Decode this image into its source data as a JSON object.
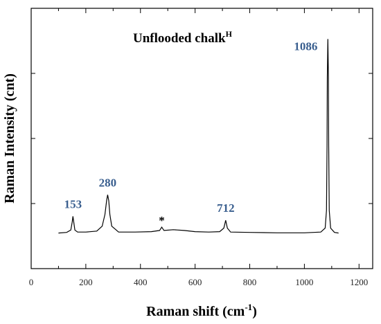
{
  "chart_data": {
    "type": "line",
    "title": "Unflooded chalk",
    "title_superscript": "H",
    "xlabel_main": "Raman shift (cm",
    "xlabel_sup": "-1",
    "xlabel_end": ")",
    "ylabel": "Raman Intensity (cnt)",
    "xlim": [
      0,
      1250
    ],
    "xticks": [
      0,
      200,
      400,
      600,
      800,
      1000,
      1200
    ],
    "ylim": [
      0,
      1
    ],
    "grid": false,
    "line_color": "#000000",
    "label_color": "#3a5f8f",
    "series": [
      {
        "x": [
          100,
          130,
          145,
          150,
          153,
          156,
          160,
          170,
          200,
          240,
          260,
          270,
          276,
          280,
          284,
          288,
          295,
          320,
          380,
          440,
          470,
          478,
          486,
          520,
          560,
          600,
          650,
          690,
          705,
          712,
          718,
          730,
          800,
          900,
          1000,
          1060,
          1076,
          1081,
          1083,
          1084,
          1086,
          1088,
          1089,
          1091,
          1096,
          1110,
          1125
        ],
        "y": [
          0.005,
          0.008,
          0.02,
          0.06,
          0.09,
          0.06,
          0.02,
          0.01,
          0.01,
          0.015,
          0.04,
          0.1,
          0.17,
          0.2,
          0.17,
          0.1,
          0.04,
          0.01,
          0.01,
          0.012,
          0.018,
          0.035,
          0.018,
          0.022,
          0.018,
          0.012,
          0.01,
          0.012,
          0.03,
          0.07,
          0.03,
          0.01,
          0.008,
          0.006,
          0.006,
          0.01,
          0.03,
          0.12,
          0.45,
          0.8,
          0.995,
          0.8,
          0.45,
          0.12,
          0.03,
          0.008,
          0.005
        ]
      }
    ],
    "annotations": [
      {
        "text": "153",
        "x": 153,
        "y": 0.09
      },
      {
        "text": "280",
        "x": 280,
        "y": 0.2
      },
      {
        "text": "*",
        "x": 478,
        "y": 0.035
      },
      {
        "text": "712",
        "x": 712,
        "y": 0.07
      },
      {
        "text": "1086",
        "x": 1086,
        "y": 0.995
      }
    ]
  }
}
